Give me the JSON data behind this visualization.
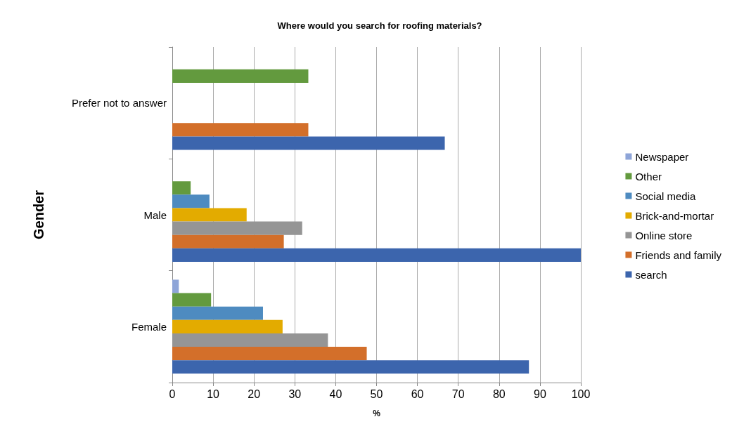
{
  "chart_data": {
    "type": "bar",
    "orientation": "horizontal",
    "title": "Where would you search for roofing materials?",
    "xlabel": "%",
    "ylabel": "Gender",
    "categories": [
      "Prefer not to answer",
      "Male",
      "Female"
    ],
    "series": [
      {
        "name": "Newspaper",
        "color": "#8ea5d8",
        "values": [
          0,
          0,
          1.6
        ]
      },
      {
        "name": "Other",
        "color": "#639a3e",
        "values": [
          33.3,
          4.5,
          9.5
        ]
      },
      {
        "name": "Social media",
        "color": "#4e8bc0",
        "values": [
          0,
          9.1,
          22.2
        ]
      },
      {
        "name": "Brick-and-mortar",
        "color": "#e3ab00",
        "values": [
          0,
          18.2,
          27
        ]
      },
      {
        "name": "Online store",
        "color": "#959595",
        "values": [
          0,
          31.8,
          38.1
        ]
      },
      {
        "name": "Friends and family",
        "color": "#d36f2a",
        "values": [
          33.3,
          27.3,
          47.6
        ]
      },
      {
        "name": "search",
        "color": "#3c65ad",
        "values": [
          66.7,
          100,
          87.3
        ]
      }
    ],
    "xlim": [
      0,
      100
    ],
    "xticks": [
      0,
      10,
      20,
      30,
      40,
      50,
      60,
      70,
      80,
      90,
      100
    ],
    "grid": "x",
    "legend": "right"
  }
}
